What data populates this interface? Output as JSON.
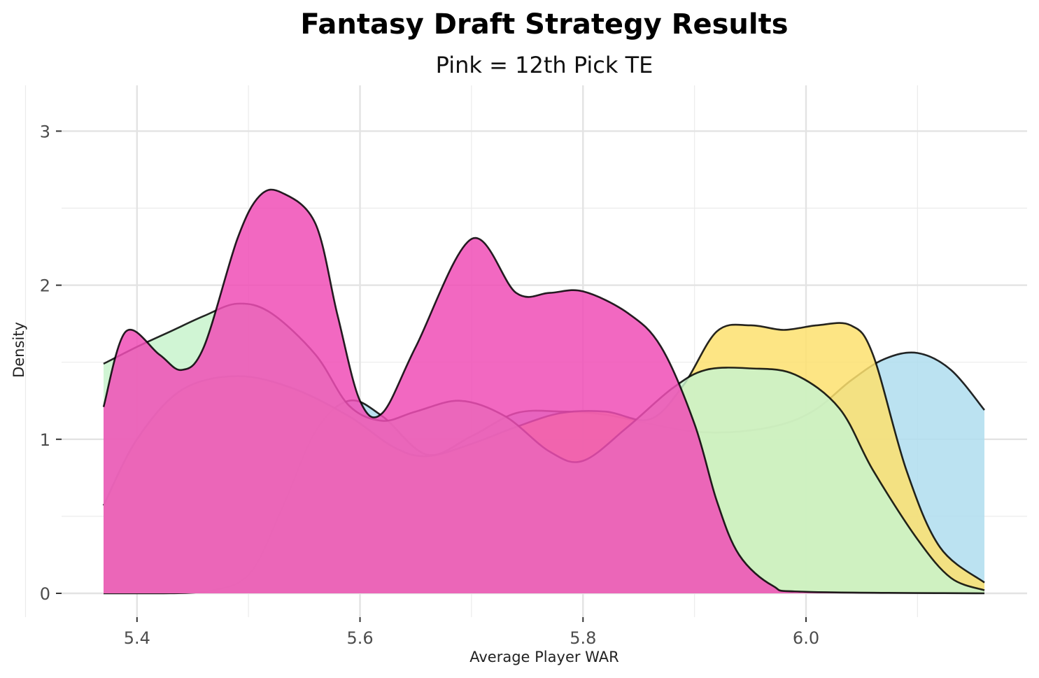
{
  "chart_data": {
    "type": "area",
    "subtype": "overlapping-density",
    "title": "Fantasy Draft Strategy Results",
    "subtitle": "Pink = 12th Pick TE",
    "xlabel": "Average Player WAR",
    "ylabel": "Density",
    "xlim": [
      5.37,
      6.16
    ],
    "ylim": [
      0,
      3.25
    ],
    "x_ticks": [
      "5.4",
      "5.6",
      "5.8",
      "6.0"
    ],
    "y_ticks": [
      "0",
      "1",
      "2",
      "3"
    ],
    "grid": true,
    "legend": "none",
    "series": [
      {
        "fill": "#AFDDEE",
        "stroke": "#000000",
        "points": [
          [
            5.37,
            0
          ],
          [
            5.42,
            0
          ],
          [
            5.46,
            0.01
          ],
          [
            5.5,
            0.12
          ],
          [
            5.53,
            0.55
          ],
          [
            5.56,
            1.05
          ],
          [
            5.59,
            1.25
          ],
          [
            5.62,
            1.15
          ],
          [
            5.66,
            0.9
          ],
          [
            5.7,
            1.02
          ],
          [
            5.74,
            1.17
          ],
          [
            5.78,
            1.18
          ],
          [
            5.82,
            1.16
          ],
          [
            5.86,
            1.1
          ],
          [
            5.9,
            1.05
          ],
          [
            5.94,
            1.05
          ],
          [
            5.98,
            1.1
          ],
          [
            6.01,
            1.2
          ],
          [
            6.04,
            1.38
          ],
          [
            6.07,
            1.52
          ],
          [
            6.1,
            1.56
          ],
          [
            6.13,
            1.45
          ],
          [
            6.16,
            1.19
          ]
        ]
      },
      {
        "fill": "#FDE16F",
        "stroke": "#000000",
        "points": [
          [
            5.37,
            0.57
          ],
          [
            5.4,
            1.0
          ],
          [
            5.44,
            1.32
          ],
          [
            5.49,
            1.41
          ],
          [
            5.54,
            1.33
          ],
          [
            5.59,
            1.15
          ],
          [
            5.63,
            0.95
          ],
          [
            5.66,
            0.89
          ],
          [
            5.7,
            0.97
          ],
          [
            5.74,
            1.08
          ],
          [
            5.78,
            1.17
          ],
          [
            5.82,
            1.18
          ],
          [
            5.86,
            1.13
          ],
          [
            5.89,
            1.35
          ],
          [
            5.92,
            1.7
          ],
          [
            5.95,
            1.74
          ],
          [
            5.98,
            1.71
          ],
          [
            6.01,
            1.74
          ],
          [
            6.04,
            1.74
          ],
          [
            6.06,
            1.55
          ],
          [
            6.09,
            0.8
          ],
          [
            6.12,
            0.3
          ],
          [
            6.16,
            0.07
          ]
        ]
      },
      {
        "fill": "#C8F3CC",
        "stroke": "#000000",
        "points": [
          [
            5.37,
            1.49
          ],
          [
            5.4,
            1.6
          ],
          [
            5.43,
            1.7
          ],
          [
            5.46,
            1.8
          ],
          [
            5.49,
            1.88
          ],
          [
            5.52,
            1.82
          ],
          [
            5.56,
            1.55
          ],
          [
            5.59,
            1.22
          ],
          [
            5.62,
            1.12
          ],
          [
            5.65,
            1.18
          ],
          [
            5.69,
            1.25
          ],
          [
            5.73,
            1.15
          ],
          [
            5.77,
            0.92
          ],
          [
            5.8,
            0.86
          ],
          [
            5.84,
            1.08
          ],
          [
            5.88,
            1.33
          ],
          [
            5.91,
            1.45
          ],
          [
            5.95,
            1.46
          ],
          [
            5.99,
            1.42
          ],
          [
            6.03,
            1.2
          ],
          [
            6.06,
            0.8
          ],
          [
            6.1,
            0.35
          ],
          [
            6.13,
            0.1
          ],
          [
            6.16,
            0.02
          ]
        ]
      },
      {
        "fill": "#F04DB6",
        "stroke": "#000000",
        "points": [
          [
            5.37,
            1.21
          ],
          [
            5.39,
            1.7
          ],
          [
            5.42,
            1.55
          ],
          [
            5.44,
            1.45
          ],
          [
            5.46,
            1.6
          ],
          [
            5.49,
            2.3
          ],
          [
            5.51,
            2.58
          ],
          [
            5.53,
            2.6
          ],
          [
            5.56,
            2.4
          ],
          [
            5.58,
            1.8
          ],
          [
            5.6,
            1.25
          ],
          [
            5.62,
            1.17
          ],
          [
            5.65,
            1.6
          ],
          [
            5.7,
            2.3
          ],
          [
            5.74,
            1.95
          ],
          [
            5.77,
            1.95
          ],
          [
            5.8,
            1.96
          ],
          [
            5.84,
            1.82
          ],
          [
            5.87,
            1.6
          ],
          [
            5.9,
            1.1
          ],
          [
            5.92,
            0.6
          ],
          [
            5.94,
            0.25
          ],
          [
            5.97,
            0.05
          ],
          [
            6.0,
            0.01
          ],
          [
            6.16,
            0
          ]
        ]
      }
    ]
  }
}
